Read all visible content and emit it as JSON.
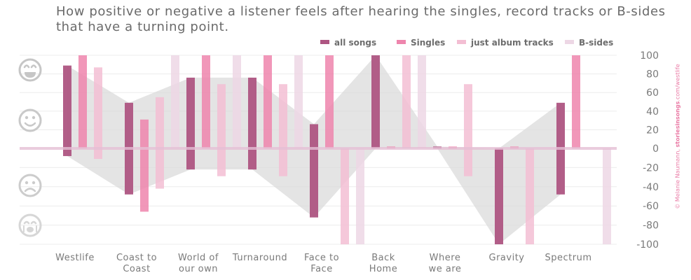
{
  "title_lines": [
    "How positive or negative a listener feels after hearing the singles, record tracks or B-sides",
    "that have a turning point."
  ],
  "credit": {
    "prefix": "© Melanie Naumann, ",
    "site": "storiesinsongs",
    "suffix": ".com/westlife"
  },
  "icons": [
    "laughing-face-icon",
    "smiling-face-icon",
    "frowning-face-icon",
    "crying-face-icon"
  ],
  "colors": {
    "all songs": "#ae5582",
    "Singles": "#ee85ad",
    "just album tracks": "#f3bed3",
    "B-sides": "#edd7e5",
    "area": "#d9d9d9",
    "zero_line": "#e5bfd5",
    "axis_text": "#7a7a7a",
    "grid": "#ececec"
  },
  "chart_data": {
    "type": "bar",
    "title": "How positive or negative a listener feels after hearing the singles, record tracks or B-sides that have a turning point.",
    "categories": [
      "Westlife",
      "Coast to Coast",
      "World of our own",
      "Turnaround",
      "Face to Face",
      "Back Home",
      "Where we are",
      "Gravity",
      "Spectrum"
    ],
    "category_lines": [
      [
        "Westlife"
      ],
      [
        "Coast to",
        "Coast"
      ],
      [
        "World of",
        "our own"
      ],
      [
        "Turnaround"
      ],
      [
        "Face to",
        "Face"
      ],
      [
        "Back",
        "Home"
      ],
      [
        "Where",
        "we are"
      ],
      [
        "Gravity"
      ],
      [
        "Spectrum"
      ]
    ],
    "series": [
      {
        "name": "all songs",
        "values": [
          89,
          49,
          76,
          76,
          26,
          100,
          2,
          0,
          49
        ]
      },
      {
        "name": "Singles",
        "values": [
          100,
          31,
          100,
          100,
          100,
          2,
          2,
          2,
          100
        ]
      },
      {
        "name": "just album tracks",
        "values": [
          87,
          55,
          69,
          69,
          0,
          100,
          69,
          0,
          0
        ]
      },
      {
        "name": "B-sides",
        "values": [
          0,
          100,
          100,
          100,
          0,
          100,
          0,
          0,
          0
        ]
      }
    ],
    "negative_series": [
      {
        "name": "all songs",
        "values": [
          -8,
          -48,
          -22,
          -22,
          -72,
          0,
          0,
          -100,
          -48
        ]
      },
      {
        "name": "Singles",
        "values": [
          0,
          -66,
          0,
          0,
          0,
          0,
          0,
          0,
          0
        ]
      },
      {
        "name": "just album tracks",
        "values": [
          -11,
          -42,
          -29,
          -29,
          -100,
          0,
          -29,
          -100,
          0
        ]
      },
      {
        "name": "B-sides",
        "values": [
          0,
          0,
          0,
          0,
          -100,
          0,
          0,
          0,
          -100
        ]
      }
    ],
    "ylim": [
      -100,
      100
    ],
    "yticks": [
      -100,
      -80,
      -60,
      -40,
      -20,
      0,
      20,
      40,
      60,
      80,
      100
    ],
    "legend_position": "top-right",
    "grid": true
  }
}
